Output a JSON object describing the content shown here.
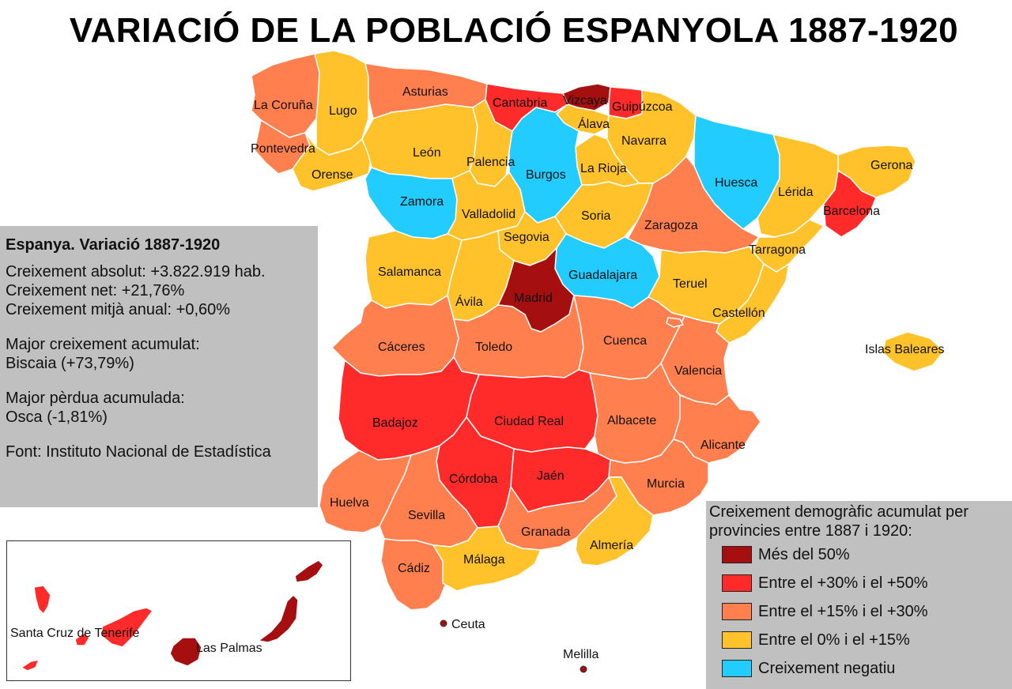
{
  "title": "VARIACIÓ DE LA POBLACIÓ ESPANYOLA 1887-1920",
  "colors": {
    "cat1": "#a50f0f",
    "cat2": "#ff2a2a",
    "cat3": "#ff7f4f",
    "cat4": "#ffc22b",
    "cat5": "#22ccff"
  },
  "stats": {
    "heading": "Espanya. Variació 1887-1920",
    "abs": "Creixement absolut: +3.822.919 hab.",
    "net": "Creixement net: +21,76%",
    "annual": "Creixement mitjà anual: +0,60%",
    "max_label": "Major creixement acumulat:",
    "max_value": "Biscaia (+73,79%)",
    "min_label": "Major pèrdua acumulada:",
    "min_value": "Osca (-1,81%)",
    "source": "Font: Instituto Nacional de Estadística"
  },
  "legend": {
    "title1": "Creixement demogràfic acumulat per",
    "title2": "provincies entre 1887 i 1920:",
    "items": [
      {
        "label": "Més del 50%",
        "color": "#a50f0f"
      },
      {
        "label": "Entre el +30% i el +50%",
        "color": "#ff2a2a"
      },
      {
        "label": "Entre el +15% i el +30%",
        "color": "#ff7f4f"
      },
      {
        "label": "Entre el 0% i el +15%",
        "color": "#ffc22b"
      },
      {
        "label": "Creixement negatiu",
        "color": "#22ccff"
      }
    ]
  },
  "provinces": [
    {
      "name": "La Coruña",
      "cat": 3
    },
    {
      "name": "Lugo",
      "cat": 4
    },
    {
      "name": "Asturias",
      "cat": 3
    },
    {
      "name": "Cantabria",
      "cat": 2
    },
    {
      "name": "Vizcaya",
      "cat": 1
    },
    {
      "name": "Guipúzcoa",
      "cat": 2
    },
    {
      "name": "Álava",
      "cat": 4
    },
    {
      "name": "Navarra",
      "cat": 4
    },
    {
      "name": "Pontevedra",
      "cat": 3
    },
    {
      "name": "Orense",
      "cat": 4
    },
    {
      "name": "León",
      "cat": 4
    },
    {
      "name": "Palencia",
      "cat": 4
    },
    {
      "name": "Burgos",
      "cat": 5
    },
    {
      "name": "La Rioja",
      "cat": 4
    },
    {
      "name": "Huesca",
      "cat": 5
    },
    {
      "name": "Gerona",
      "cat": 4
    },
    {
      "name": "Lérida",
      "cat": 4
    },
    {
      "name": "Barcelona",
      "cat": 2
    },
    {
      "name": "Zamora",
      "cat": 5
    },
    {
      "name": "Valladolid",
      "cat": 4
    },
    {
      "name": "Soria",
      "cat": 4
    },
    {
      "name": "Zaragoza",
      "cat": 3
    },
    {
      "name": "Tarragona",
      "cat": 4
    },
    {
      "name": "Segovia",
      "cat": 4
    },
    {
      "name": "Salamanca",
      "cat": 4
    },
    {
      "name": "Guadalajara",
      "cat": 5
    },
    {
      "name": "Madrid",
      "cat": 1
    },
    {
      "name": "Ávila",
      "cat": 4
    },
    {
      "name": "Teruel",
      "cat": 4
    },
    {
      "name": "Castellón",
      "cat": 4
    },
    {
      "name": "Cáceres",
      "cat": 3
    },
    {
      "name": "Toledo",
      "cat": 3
    },
    {
      "name": "Cuenca",
      "cat": 3
    },
    {
      "name": "Valencia",
      "cat": 3
    },
    {
      "name": "Islas Baleares",
      "cat": 4
    },
    {
      "name": "Badajoz",
      "cat": 2
    },
    {
      "name": "Ciudad Real",
      "cat": 2
    },
    {
      "name": "Albacete",
      "cat": 3
    },
    {
      "name": "Alicante",
      "cat": 3
    },
    {
      "name": "Córdoba",
      "cat": 2
    },
    {
      "name": "Jaén",
      "cat": 2
    },
    {
      "name": "Murcia",
      "cat": 3
    },
    {
      "name": "Huelva",
      "cat": 3
    },
    {
      "name": "Sevilla",
      "cat": 3
    },
    {
      "name": "Granada",
      "cat": 3
    },
    {
      "name": "Almería",
      "cat": 4
    },
    {
      "name": "Cádiz",
      "cat": 3
    },
    {
      "name": "Málaga",
      "cat": 4
    },
    {
      "name": "Santa Cruz de Tenerife",
      "cat": 2
    },
    {
      "name": "Las Palmas",
      "cat": 1
    }
  ],
  "cities": {
    "ceuta": "Ceuta",
    "melilla": "Melilla"
  }
}
